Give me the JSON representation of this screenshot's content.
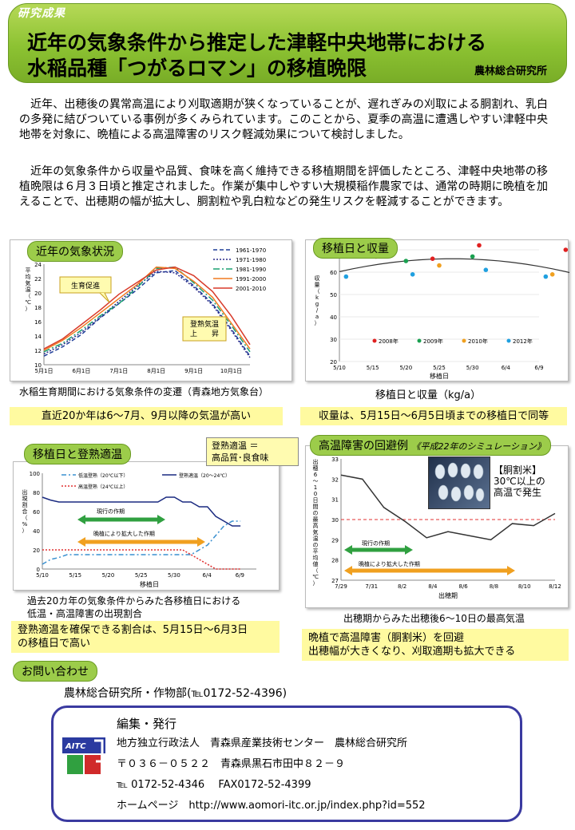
{
  "header": {
    "badge": "研究成果",
    "title_line1": "近年の気象条件から推定した津軽中央地帯における",
    "title_line2": "水稲品種「つがるロマン」の移植晩限",
    "organization": "農林総合研究所"
  },
  "intro": [
    "近年、出穂後の異常高温により刈取適期が狭くなっていることが、遅れぎみの刈取による胴割れ、乳白の多発に結びついている事例が多くみられています。このことから、夏季の高温に遭遇しやすい津軽中央地帯を対象に、晩植による高温障害のリスク軽減効果について検討しました。",
    "近年の気象条件から収量や品質、食味を高く維持できる移植期間を評価したところ、津軽中央地帯の移植晩限は６月３日頃と推定されました。作業が集中しやすい大規模稲作農家では、通常の時期に晩植を加えることで、出穂期の幅が拡大し、胴割粒や乳白粒などの発生リスクを軽減することができます。"
  ],
  "panels": {
    "weather": {
      "title": "近年の気象状況",
      "caption": "水稲生育期間における気象条件の変遷（青森地方気象台）",
      "summary": "直近20か年は6～7月、9月以降の気温が高い",
      "callout_growth": "生育促進",
      "callout_ripening": "登熟気温\n上　　昇"
    },
    "yield": {
      "title": "移植日と収量",
      "caption": "移植日と収量（kg/a）",
      "summary": "収量は、5月15日～6月5日頃までの移植日で同等"
    },
    "ripening": {
      "title": "移植日と登熟適温",
      "callout": "登熟適温 ＝\n高品質･良食味",
      "caption1": "過去20カ年の気象条件からみた各移植日における",
      "caption2": "低温・高温障害の出現割合",
      "summary1": "登熟適温を確保できる割合は、5月15日～6月3日",
      "summary2": "の移植日で高い",
      "bar_normal": "現行の作期",
      "bar_extended": "晩植により拡大した作期"
    },
    "heat": {
      "title": "高温障害の回避例",
      "subtitle": "《平成22年のシミュレーション》",
      "photo_label": "【胴割米】\n30℃以上の\n高温で発生",
      "caption": "出穂期からみた出穂後6～10日の最高気温",
      "summary1": "晩植で高温障害（胴割米）を回避",
      "summary2": "出穂幅が大きくなり、刈取適期も拡大できる",
      "bar_normal": "現行の作期",
      "bar_extended": "晩植により拡大した作期"
    }
  },
  "contact": {
    "title": "お問い合わせ",
    "text": "農林総合研究所・作物部(℡0172-52-4396)"
  },
  "footer": {
    "logo": "AITC",
    "heading": "編集・発行",
    "line1": "地方独立行政法人　青森県産業技術センター　農林総合研究所",
    "line2": "〒０３６－０５２２　青森県黒石市田中８２－９",
    "line3": "℡ 0172-52-4346　 FAX0172-52-4399",
    "line4": "ホームページ　http://www.aomori-itc.or.jp/index.php?id=552"
  },
  "chart_data": [
    {
      "type": "line",
      "ylabel": "平均気温（℃）",
      "ylim": [
        10,
        24
      ],
      "xticks": [
        "5月1日",
        "6月1日",
        "7月1日",
        "8月1日",
        "9月1日",
        "10月1日"
      ],
      "yticks": [
        10,
        12,
        14,
        16,
        18,
        20,
        22,
        24
      ],
      "series": [
        {
          "name": "1961-1970",
          "color": "#1f3f99",
          "dash": "5,3",
          "values": [
            11.2,
            12.5,
            14.2,
            16.5,
            18.5,
            20.5,
            22.8,
            23.1,
            21.0,
            18.5,
            15.0,
            11.2
          ]
        },
        {
          "name": "1971-1980",
          "color": "#2a2a8a",
          "dash": "2,2",
          "values": [
            11.5,
            12.8,
            14.5,
            16.6,
            18.8,
            21.0,
            23.0,
            22.8,
            20.8,
            18.3,
            14.8,
            11.0
          ]
        },
        {
          "name": "1981-1990",
          "color": "#1aa070",
          "dash": "8,3,2,3",
          "values": [
            11.8,
            13.0,
            14.8,
            16.8,
            18.5,
            20.8,
            23.4,
            23.6,
            21.4,
            19.0,
            15.5,
            11.8
          ]
        },
        {
          "name": "1991-2000",
          "color": "#f07a20",
          "dash": "",
          "values": [
            12.0,
            13.4,
            15.2,
            17.2,
            19.2,
            21.2,
            23.6,
            23.4,
            21.6,
            19.4,
            15.8,
            12.2
          ]
        },
        {
          "name": "2001-2010",
          "color": "#d83a2a",
          "dash": "",
          "values": [
            12.2,
            13.6,
            15.6,
            17.6,
            19.8,
            21.5,
            23.2,
            23.6,
            22.4,
            20.2,
            16.8,
            12.8
          ]
        }
      ]
    },
    {
      "type": "scatter",
      "ylabel": "収量（kg/a）",
      "xlabel": "移植日",
      "ylim": [
        20,
        70
      ],
      "xticks": [
        "5/10",
        "5/15",
        "5/20",
        "5/25",
        "5/30",
        "6/4",
        "6/9"
      ],
      "yticks": [
        20,
        30,
        40,
        50,
        60,
        70
      ],
      "series": [
        {
          "name": "2008年",
          "color": "#e02020",
          "points": [
            [
              5.5,
              67
            ],
            [
              14,
              66
            ],
            [
              21,
              72
            ],
            [
              34,
              70
            ]
          ]
        },
        {
          "name": "2009年",
          "color": "#1aa050",
          "points": [
            [
              10,
              65
            ],
            [
              20,
              67
            ],
            [
              35,
              65
            ],
            [
              42,
              61
            ]
          ]
        },
        {
          "name": "2010年",
          "color": "#f0a020",
          "points": [
            [
              15,
              63
            ],
            [
              32,
              59
            ],
            [
              40,
              57
            ]
          ]
        },
        {
          "name": "2012年",
          "color": "#20a0e0",
          "points": [
            [
              1,
              58
            ],
            [
              11,
              59
            ],
            [
              22,
              61
            ],
            [
              31,
              58
            ]
          ]
        }
      ]
    },
    {
      "type": "line",
      "ylabel": "出現割合（%）",
      "xlabel": "移植日",
      "ylim": [
        0,
        100
      ],
      "xticks": [
        "5/10",
        "5/15",
        "5/20",
        "5/25",
        "5/30",
        "6/4",
        "6/9"
      ],
      "yticks": [
        0,
        20,
        40,
        60,
        80,
        100
      ],
      "series": [
        {
          "name": "低温登熟（20℃以下）",
          "color": "#3a90d0",
          "dash": "6,3,2,3",
          "values": [
            5,
            10,
            12,
            15,
            15,
            15,
            15,
            15,
            15,
            15,
            15,
            15,
            15,
            15,
            15,
            15,
            15,
            15,
            15,
            20,
            25,
            35,
            45,
            50,
            50
          ]
        },
        {
          "name": "高温登熟（24℃以上）",
          "color": "#e03030",
          "dash": "2,2",
          "values": [
            20,
            20,
            20,
            20,
            20,
            20,
            20,
            20,
            20,
            20,
            20,
            20,
            20,
            20,
            20,
            20,
            20,
            20,
            15,
            10,
            5,
            0,
            0,
            0,
            0
          ]
        },
        {
          "name": "登熟適温（20～24℃）",
          "color": "#1a2a80",
          "dash": "",
          "values": [
            75,
            72,
            70,
            70,
            70,
            70,
            70,
            70,
            70,
            70,
            70,
            70,
            70,
            70,
            70,
            75,
            75,
            70,
            70,
            65,
            65,
            55,
            50,
            45,
            45
          ]
        }
      ]
    },
    {
      "type": "line",
      "ylabel": "出穂6～10日間の最高気温の平均値（℃）",
      "xlabel": "出穂期",
      "ylim": [
        27,
        33
      ],
      "xticks": [
        "7/29",
        "7/31",
        "8/2",
        "8/4",
        "8/6",
        "8/8",
        "8/10",
        "8/12"
      ],
      "yticks": [
        27,
        28,
        29,
        30,
        31,
        32,
        33
      ],
      "series": [
        {
          "name": "",
          "color": "#333333",
          "dash": "",
          "values": [
            32.2,
            32.0,
            30.6,
            29.9,
            29.1,
            29.4,
            29.2,
            29.0,
            29.8,
            29.7,
            30.3
          ]
        }
      ],
      "threshold": 30
    }
  ]
}
